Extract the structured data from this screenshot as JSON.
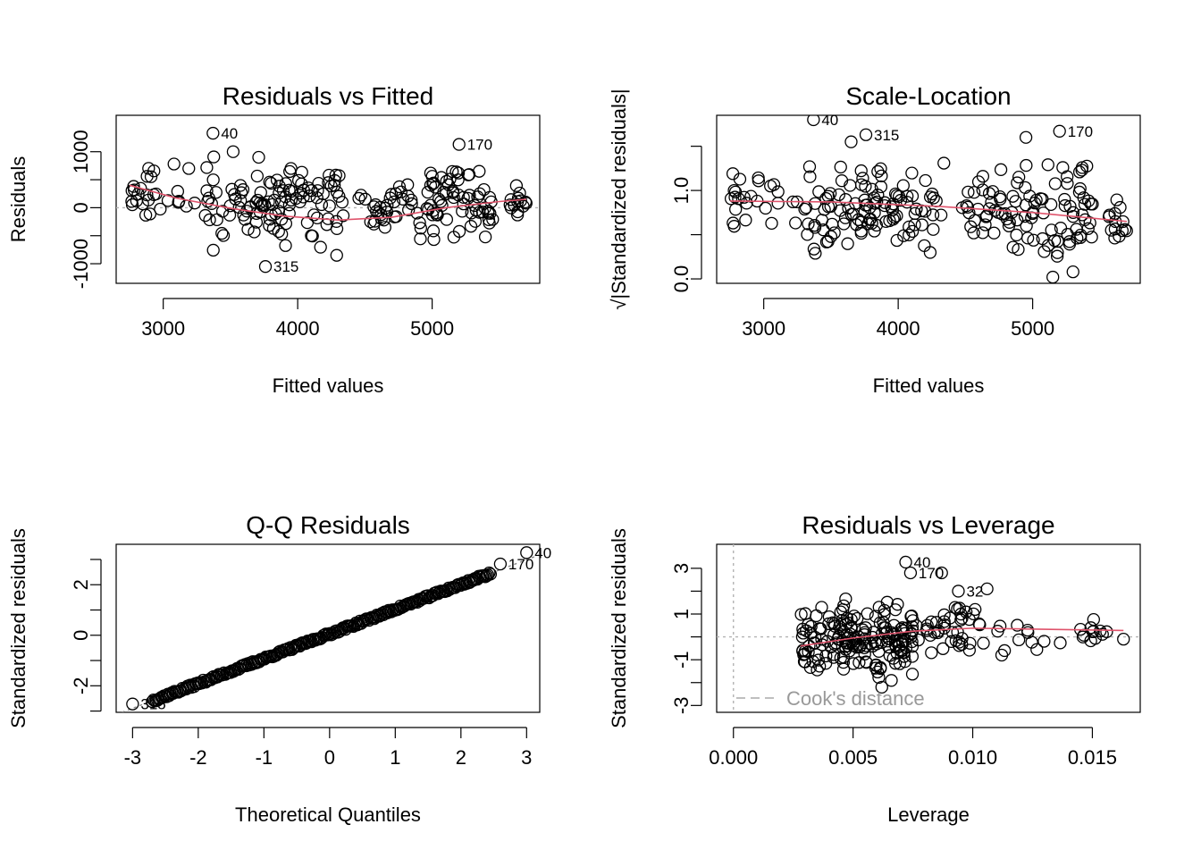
{
  "chart_data": [
    {
      "type": "scatter",
      "title": "Residuals vs Fitted",
      "xlabel": "Fitted values",
      "ylabel": "Residuals",
      "xlim": [
        2650,
        5800
      ],
      "ylim": [
        -1350,
        1650
      ],
      "xticks": [
        3000,
        4000,
        5000
      ],
      "xticklabels": [
        "3000",
        "4000",
        "5000"
      ],
      "yticks": [
        -1000,
        -500,
        0,
        500,
        1000
      ],
      "yticklabels": [
        "-1000",
        "",
        "0",
        "",
        "1000"
      ],
      "refline": {
        "kind": "h",
        "value": 0
      },
      "seed": 11,
      "cloud": [
        {
          "n": 24,
          "x": [
            2750,
            3250
          ],
          "y": [
            -450,
            900
          ]
        },
        {
          "n": 110,
          "x": [
            3300,
            4350
          ],
          "y": [
            -850,
            950
          ]
        },
        {
          "n": 20,
          "x": [
            4450,
            4700
          ],
          "y": [
            -700,
            500
          ]
        },
        {
          "n": 80,
          "x": [
            4700,
            5450
          ],
          "y": [
            -800,
            1000
          ]
        },
        {
          "n": 14,
          "x": [
            5550,
            5700
          ],
          "y": [
            -250,
            450
          ]
        }
      ],
      "points": [
        {
          "x": 2780,
          "y": 380
        },
        {
          "x": 2880,
          "y": 560
        },
        {
          "x": 3080,
          "y": 780
        },
        {
          "x": 3190,
          "y": 700
        },
        {
          "x": 3520,
          "y": 1000
        },
        {
          "x": 3710,
          "y": 900
        },
        {
          "x": 3950,
          "y": 700
        },
        {
          "x": 4290,
          "y": -850
        },
        {
          "x": 5350,
          "y": 650
        }
      ],
      "labeled_points": [
        {
          "x": 3370,
          "y": 1330,
          "label": "40"
        },
        {
          "x": 5200,
          "y": 1130,
          "label": "170"
        },
        {
          "x": 3760,
          "y": -1050,
          "label": "315"
        }
      ],
      "trend": {
        "x": [
          2750,
          3100,
          3500,
          3900,
          4300,
          4700,
          5100,
          5500,
          5700
        ],
        "y": [
          400,
          170,
          -10,
          -150,
          -220,
          -170,
          0,
          110,
          150
        ]
      }
    },
    {
      "type": "scatter",
      "title": "Scale-Location",
      "xlabel": "Fitted values",
      "ylabel": "√|Standardized residuals|",
      "xlim": [
        2650,
        5800
      ],
      "ylim": [
        -0.05,
        1.85
      ],
      "xticks": [
        3000,
        4000,
        5000
      ],
      "xticklabels": [
        "3000",
        "4000",
        "5000"
      ],
      "yticks": [
        0.0,
        0.5,
        1.0,
        1.5
      ],
      "yticklabels": [
        "0.0",
        "",
        "1.0",
        ""
      ],
      "seed": 23,
      "cloud": [
        {
          "n": 24,
          "x": [
            2750,
            3250
          ],
          "y": [
            0.3,
            1.45
          ]
        },
        {
          "n": 110,
          "x": [
            3300,
            4350
          ],
          "y": [
            0.12,
            1.5
          ]
        },
        {
          "n": 20,
          "x": [
            4450,
            4700
          ],
          "y": [
            0.2,
            1.3
          ]
        },
        {
          "n": 80,
          "x": [
            4700,
            5450
          ],
          "y": [
            0.0,
            1.5
          ]
        },
        {
          "n": 14,
          "x": [
            5550,
            5700
          ],
          "y": [
            0.3,
            1.05
          ]
        }
      ],
      "points": [
        {
          "x": 2780,
          "y": 1.0
        },
        {
          "x": 3050,
          "y": 1.05
        },
        {
          "x": 3650,
          "y": 1.55
        },
        {
          "x": 5150,
          "y": 0.02
        },
        {
          "x": 5300,
          "y": 0.08
        },
        {
          "x": 4950,
          "y": 1.6
        }
      ],
      "labeled_points": [
        {
          "x": 3370,
          "y": 1.8,
          "label": "40"
        },
        {
          "x": 3760,
          "y": 1.63,
          "label": "315"
        },
        {
          "x": 5200,
          "y": 1.67,
          "label": "170"
        }
      ],
      "trend": {
        "x": [
          2750,
          3500,
          4300,
          5000,
          5700
        ],
        "y": [
          0.88,
          0.87,
          0.82,
          0.75,
          0.65
        ]
      }
    },
    {
      "type": "scatter",
      "title": "Q-Q Residuals",
      "xlabel": "Theoretical Quantiles",
      "ylabel": "Standardized residuals",
      "xlim": [
        -3.25,
        3.2
      ],
      "ylim": [
        -3.05,
        3.6
      ],
      "xticks": [
        -3,
        -2,
        -1,
        0,
        1,
        2,
        3
      ],
      "xticklabels": [
        "-3",
        "-2",
        "-1",
        "0",
        "1",
        "2",
        "3"
      ],
      "yticks": [
        -3,
        -2,
        -1,
        0,
        1,
        2,
        3
      ],
      "yticklabels": [
        "",
        "-2",
        "",
        "0",
        "",
        "2",
        ""
      ],
      "refline": {
        "kind": "diag",
        "slope": 0.98,
        "intercept": 0.05
      },
      "qq": {
        "n": 260,
        "x_from": -2.7,
        "x_to": 2.45,
        "slope": 0.98,
        "intercept": 0.05,
        "jitter": 0.06,
        "seed": 37
      },
      "points": [],
      "labeled_points": [
        {
          "x": -3.0,
          "y": -2.72,
          "label": "315"
        },
        {
          "x": 2.6,
          "y": 2.82,
          "label": "170"
        },
        {
          "x": 3.0,
          "y": 3.27,
          "label": "40"
        }
      ]
    },
    {
      "type": "scatter",
      "title": "Residuals vs Leverage",
      "xlabel": "Leverage",
      "ylabel": "Standardized residuals",
      "xlim": [
        -0.0007,
        0.017
      ],
      "ylim": [
        -3.3,
        4.05
      ],
      "xticks": [
        0.0,
        0.005,
        0.01,
        0.015
      ],
      "xticklabels": [
        "0.000",
        "0.005",
        "0.010",
        "0.015"
      ],
      "yticks": [
        -3,
        -2,
        -1,
        0,
        1,
        2,
        3
      ],
      "yticklabels": [
        "-3",
        "",
        "-1",
        "",
        "1",
        "",
        "3"
      ],
      "refline": {
        "kind": "h",
        "value": 0
      },
      "vline": {
        "value": 0
      },
      "seed": 51,
      "cloud": [
        {
          "n": 180,
          "x": [
            0.0028,
            0.0075
          ],
          "y": [
            -2.2,
            2.0
          ]
        },
        {
          "n": 40,
          "x": [
            0.0075,
            0.0105
          ],
          "y": [
            -1.5,
            1.8
          ]
        },
        {
          "n": 12,
          "x": [
            0.0105,
            0.014
          ],
          "y": [
            -1.1,
            1.0
          ]
        },
        {
          "n": 12,
          "x": [
            0.0145,
            0.0157
          ],
          "y": [
            -0.5,
            1.0
          ]
        }
      ],
      "points": [
        {
          "x": 0.0163,
          "y": -0.1
        },
        {
          "x": 0.0087,
          "y": 2.8
        },
        {
          "x": 0.0106,
          "y": 2.1
        },
        {
          "x": 0.0062,
          "y": -2.2
        },
        {
          "x": 0.0101,
          "y": 1.2
        }
      ],
      "labeled_points": [
        {
          "x": 0.0072,
          "y": 3.27,
          "label": "40"
        },
        {
          "x": 0.0074,
          "y": 2.8,
          "label": "170"
        },
        {
          "x": 0.0094,
          "y": 2.0,
          "label": "32"
        }
      ],
      "trend": {
        "x": [
          0.0028,
          0.005,
          0.0075,
          0.01,
          0.0163
        ],
        "y": [
          -0.4,
          -0.05,
          0.25,
          0.38,
          0.28
        ]
      },
      "legend": {
        "label": "Cook's distance",
        "position": "bottom-left"
      }
    }
  ]
}
